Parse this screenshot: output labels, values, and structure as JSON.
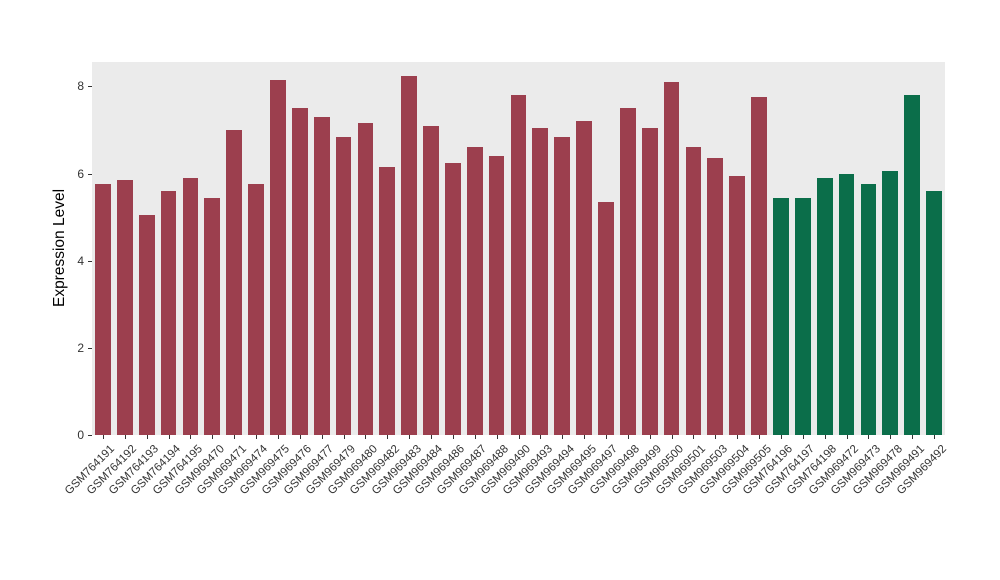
{
  "colors": {
    "figure_background": "#FFFFFF",
    "panel_background": "#EBEBEB",
    "axis_text": "#333333",
    "bar_red": "#9C3F4E",
    "bar_green": "#0B6E4A"
  },
  "chart_data": {
    "type": "bar",
    "title": "",
    "xlabel": "",
    "ylabel": "Expression Level",
    "ylim": [
      0,
      8.56
    ],
    "yticks": [
      0,
      2,
      4,
      6,
      8
    ],
    "grid": false,
    "legend": "none",
    "categories": [
      "GSM764191",
      "GSM764192",
      "GSM764193",
      "GSM764194",
      "GSM764195",
      "GSM969470",
      "GSM969471",
      "GSM969474",
      "GSM969475",
      "GSM969476",
      "GSM969477",
      "GSM969479",
      "GSM969480",
      "GSM969482",
      "GSM969483",
      "GSM969484",
      "GSM969486",
      "GSM969487",
      "GSM969488",
      "GSM969490",
      "GSM969493",
      "GSM969494",
      "GSM969495",
      "GSM969497",
      "GSM969498",
      "GSM969499",
      "GSM969500",
      "GSM969501",
      "GSM969503",
      "GSM969504",
      "GSM969505",
      "GSM764196",
      "GSM764197",
      "GSM764198",
      "GSM969472",
      "GSM969473",
      "GSM969478",
      "GSM969491",
      "GSM969492"
    ],
    "values": [
      5.75,
      5.85,
      5.05,
      5.6,
      5.9,
      5.45,
      7.0,
      5.75,
      8.15,
      7.5,
      7.3,
      6.85,
      7.15,
      6.15,
      8.25,
      7.1,
      6.25,
      6.6,
      6.4,
      7.8,
      7.05,
      6.85,
      7.2,
      5.35,
      7.5,
      7.05,
      8.1,
      6.6,
      6.35,
      5.95,
      7.75,
      5.45,
      5.45,
      5.9,
      6.0,
      5.75,
      6.05,
      7.8,
      5.6
    ],
    "groups": [
      "red",
      "red",
      "red",
      "red",
      "red",
      "red",
      "red",
      "red",
      "red",
      "red",
      "red",
      "red",
      "red",
      "red",
      "red",
      "red",
      "red",
      "red",
      "red",
      "red",
      "red",
      "red",
      "red",
      "red",
      "red",
      "red",
      "red",
      "red",
      "red",
      "red",
      "red",
      "green",
      "green",
      "green",
      "green",
      "green",
      "green",
      "green",
      "green"
    ],
    "group_colors": {
      "red": "#9C3F4E",
      "green": "#0B6E4A"
    }
  }
}
